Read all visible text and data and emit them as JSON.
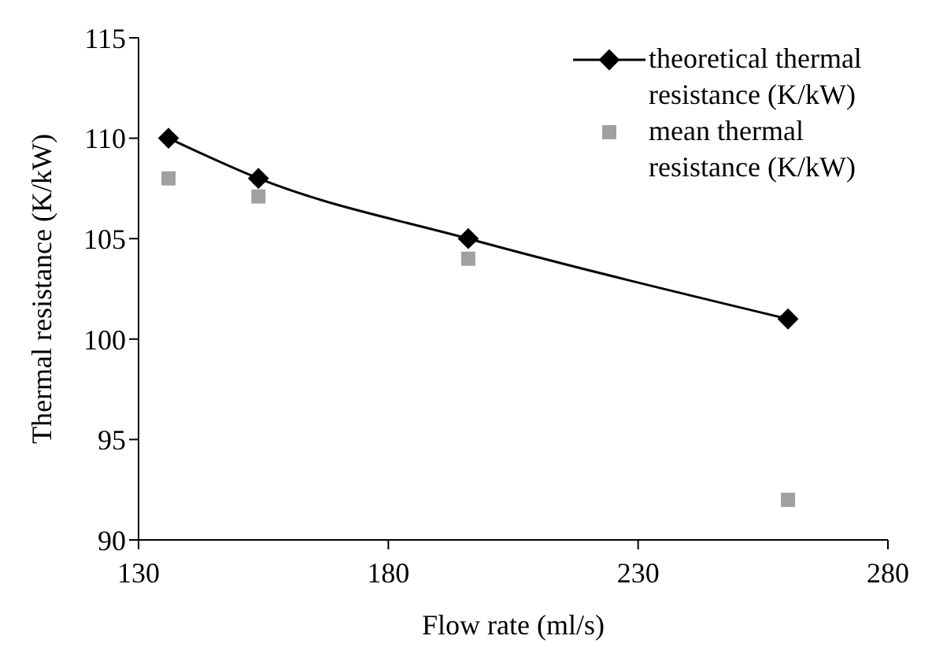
{
  "chart_data": {
    "type": "line",
    "xlabel": "Flow rate (ml/s)",
    "ylabel": "Thermal resistance (K/kW)",
    "x": [
      136,
      154,
      196,
      260
    ],
    "series": [
      {
        "name": "theoretical thermal resistance (K/kW)",
        "color": "#000000",
        "values": [
          110,
          108,
          105,
          101
        ],
        "marker": "diamond",
        "line_style": "solid"
      },
      {
        "name": "mean thermal resistance (K/kW)",
        "type": "scatter",
        "color": "#a0a0a0",
        "values": [
          108,
          107.1,
          104,
          92
        ],
        "marker": "square"
      }
    ],
    "xlim": [
      130,
      280
    ],
    "xticks": [
      130,
      180,
      230,
      280
    ],
    "ylim": [
      90,
      115
    ],
    "yticks": [
      90,
      95,
      100,
      105,
      110,
      115
    ],
    "grid": false,
    "legend": "top right"
  }
}
